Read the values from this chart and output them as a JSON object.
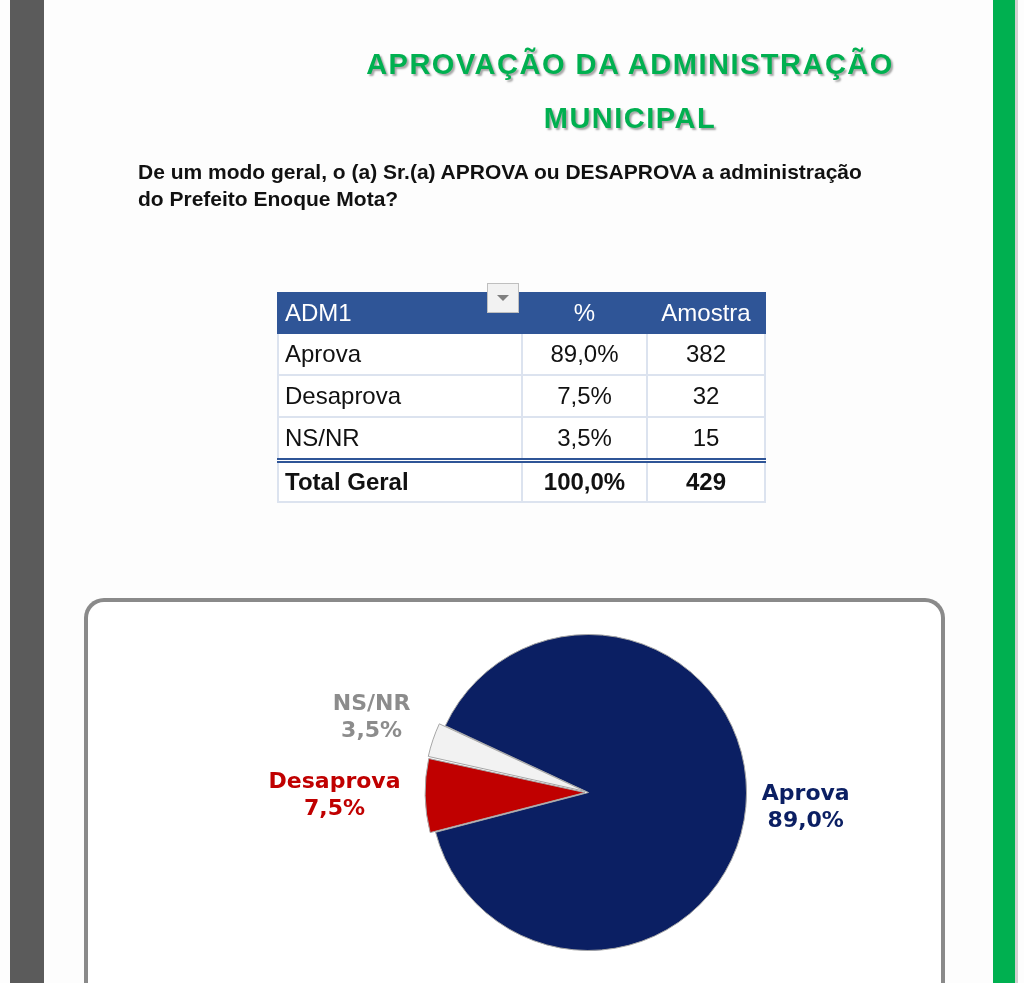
{
  "chart_data": [
    {
      "type": "other",
      "title": "APROVAÇÃO DA ADMINISTRAÇÃO MUNICIPAL",
      "subtitle": "De um modo geral, o (a) Sr.(a) APROVA ou DESAPROVA a administração do Prefeito Enoque Mota?",
      "categories": [
        "Aprova",
        "Desaprova",
        "NS/NR"
      ],
      "series": [
        {
          "name": "%",
          "values": [
            89.0,
            7.5,
            3.5
          ],
          "value_labels": [
            "89,0%",
            "7,5%",
            "3,5%"
          ]
        },
        {
          "name": "Amostra",
          "values": [
            382,
            32,
            15
          ]
        }
      ],
      "data_labels": true,
      "totals": [
        "100,0%",
        "429"
      ],
      "annotations": [
        "ADM1",
        "Total Geral"
      ]
    },
    {
      "type": "pie",
      "categories": [
        "Aprova",
        "Desaprova",
        "NS/NR"
      ],
      "values": [
        89.0,
        7.5,
        3.5
      ],
      "colors": [
        "#0b1f63",
        "#c00000",
        "#f2f2f2"
      ],
      "value_labels": [
        "89,0%",
        "7,5%",
        "3,5%"
      ]
    }
  ]
}
